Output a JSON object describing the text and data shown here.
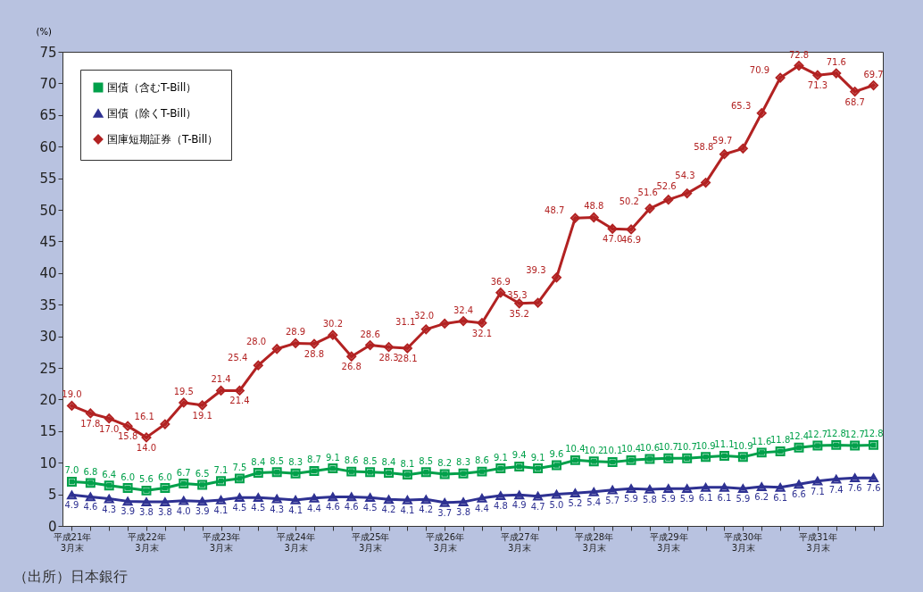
{
  "chart_data": {
    "type": "line",
    "ylabel": "(%)",
    "categories": [
      "平成21年\n3月末",
      null,
      null,
      null,
      "平成22年\n3月末",
      null,
      null,
      null,
      "平成23年\n3月末",
      null,
      null,
      null,
      "平成24年\n3月末",
      null,
      null,
      null,
      "平成25年\n3月末",
      null,
      null,
      null,
      "平成26年\n3月末",
      null,
      null,
      null,
      "平成27年\n3月末",
      null,
      null,
      null,
      "平成28年\n3月末",
      null,
      null,
      null,
      "平成29年\n3月末",
      null,
      null,
      null,
      "平成30年\n3月末",
      null,
      null,
      null,
      "平成31年\n3月末",
      null,
      null,
      null
    ],
    "series": [
      {
        "name": "国債（含むT-Bill）",
        "color": "#00a04a",
        "marker": "square",
        "values": [
          7.0,
          6.8,
          6.4,
          6.0,
          5.6,
          6.0,
          6.7,
          6.5,
          7.1,
          7.5,
          8.4,
          8.5,
          8.3,
          8.7,
          9.1,
          8.6,
          8.5,
          8.4,
          8.1,
          8.5,
          8.2,
          8.3,
          8.6,
          9.1,
          9.4,
          9.1,
          9.6,
          10.4,
          10.2,
          10.1,
          10.4,
          10.6,
          10.7,
          10.7,
          10.9,
          11.1,
          10.9,
          11.6,
          11.8,
          12.4,
          12.7,
          12.8,
          12.7,
          12.8
        ],
        "value_labels": [
          "7.0",
          "6.8",
          "6.4",
          "6.0",
          "5.6",
          "6.0",
          "6.7",
          "6.5",
          "7.1",
          "7.5",
          "8.4",
          "8.5",
          "8.3",
          "8.7",
          "9.1",
          "8.6",
          "8.5",
          "8.4",
          "8.1",
          "8.5",
          "8.2",
          "8.3",
          "8.6",
          "9.1",
          "9.4",
          "9.1",
          "9.6",
          "10.4",
          "10.2",
          "10.1",
          "10.4",
          "10.6",
          "10.7",
          "10.7",
          "10.9",
          "11.1",
          "10.9",
          "11.6",
          "11.8",
          "12.4",
          "12.7",
          "12.8",
          "12.7",
          "12.8"
        ]
      },
      {
        "name": "国債（除くT-Bill）",
        "color": "#2e3192",
        "marker": "triangle",
        "values": [
          4.9,
          4.6,
          4.3,
          3.9,
          3.8,
          3.8,
          4.0,
          3.9,
          4.1,
          4.5,
          4.5,
          4.3,
          4.1,
          4.4,
          4.6,
          4.6,
          4.5,
          4.2,
          4.1,
          4.2,
          3.7,
          3.8,
          4.4,
          4.8,
          4.9,
          4.7,
          5.0,
          5.2,
          5.4,
          5.7,
          5.9,
          5.8,
          5.9,
          5.9,
          6.1,
          6.1,
          5.9,
          6.2,
          6.1,
          6.6,
          7.1,
          7.4,
          7.6,
          7.6
        ],
        "value_labels": [
          "4.9",
          "4.6",
          "4.3",
          "3.9",
          "3.8",
          "3.8",
          "4.0",
          "3.9",
          "4.1",
          "4.5",
          "4.5",
          "4.3",
          "4.1",
          "4.4",
          "4.6",
          "4.6",
          "4.5",
          "4.2",
          "4.1",
          "4.2",
          "3.7",
          "3.8",
          "4.4",
          "4.8",
          "4.9",
          "4.7",
          "5.0",
          "5.2",
          "5.4",
          "5.7",
          "5.9",
          "5.8",
          "5.9",
          "5.9",
          "6.1",
          "6.1",
          "5.9",
          "6.2",
          "6.1",
          "6.6",
          "7.1",
          "7.4",
          "7.6",
          "7.6"
        ]
      },
      {
        "name": "国庫短期証券（T-Bill）",
        "color": "#b22222",
        "marker": "diamond",
        "values": [
          19.0,
          17.8,
          17.0,
          15.8,
          14.0,
          16.1,
          19.5,
          19.1,
          21.4,
          21.4,
          25.4,
          28.0,
          28.9,
          28.8,
          30.2,
          26.8,
          28.6,
          28.3,
          28.1,
          31.1,
          32.0,
          32.4,
          32.1,
          36.9,
          35.2,
          35.3,
          39.3,
          48.7,
          48.8,
          47.0,
          46.9,
          50.2,
          51.6,
          52.6,
          54.3,
          58.8,
          59.7,
          65.3,
          70.9,
          72.8,
          71.3,
          71.6,
          68.7,
          69.7
        ],
        "value_labels": [
          "19.0",
          "17.8",
          "17.0",
          "15.8",
          "14.0",
          "16.1",
          "19.5",
          "19.1",
          "21.4",
          "21.4",
          "25.4",
          "28.0",
          "28.9",
          "28.8",
          "30.2",
          "26.8",
          "28.6",
          "28.3",
          "28.1",
          "31.1",
          "32.0",
          "32.4",
          "32.1",
          "36.9",
          "35.2",
          "35.3",
          "39.3",
          "48.7",
          "48.8",
          "47.0",
          "46.9",
          "50.2",
          "51.6",
          "52.6",
          "54.3",
          "58.8",
          "59.7",
          "65.3",
          "70.9",
          "72.8",
          "71.3",
          "71.6",
          "68.7",
          "69.7"
        ]
      }
    ],
    "ylim": [
      0,
      75
    ],
    "yticks": [
      0,
      5,
      10,
      15,
      20,
      25,
      30,
      35,
      40,
      45,
      50,
      55,
      60,
      65,
      70,
      75
    ],
    "grid": false,
    "legend": "top left",
    "annotations": [
      "（出所）日本銀行"
    ]
  }
}
